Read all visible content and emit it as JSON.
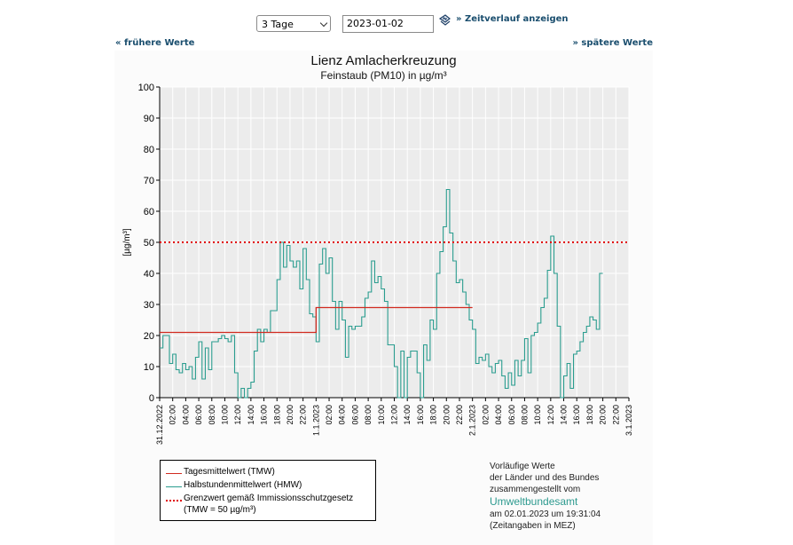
{
  "controls": {
    "range_selected": "3 Tage",
    "date_value": "2023-01-02",
    "show_timeline": "» Zeitverlauf anzeigen",
    "earlier": "« frühere Werte",
    "later": "» spätere Werte"
  },
  "chart_data": {
    "type": "line",
    "title": "Lienz Amlacherkreuzung",
    "subtitle": "Feinstaub (PM10) in µg/m³",
    "ylabel": "[µg/m³]",
    "ylim": [
      0,
      100
    ],
    "yticks": [
      0,
      10,
      20,
      30,
      40,
      50,
      60,
      70,
      80,
      90,
      100
    ],
    "x_range_hours": [
      0,
      72
    ],
    "x_ticks": [
      {
        "h": 0,
        "label": "31.12.2022"
      },
      {
        "h": 2,
        "label": "02:00"
      },
      {
        "h": 4,
        "label": "04:00"
      },
      {
        "h": 6,
        "label": "06:00"
      },
      {
        "h": 8,
        "label": "08:00"
      },
      {
        "h": 10,
        "label": "10:00"
      },
      {
        "h": 12,
        "label": "12:00"
      },
      {
        "h": 14,
        "label": "14:00"
      },
      {
        "h": 16,
        "label": "16:00"
      },
      {
        "h": 18,
        "label": "18:00"
      },
      {
        "h": 20,
        "label": "20:00"
      },
      {
        "h": 22,
        "label": "22:00"
      },
      {
        "h": 24,
        "label": "1.1.2023"
      },
      {
        "h": 26,
        "label": "02:00"
      },
      {
        "h": 28,
        "label": "04:00"
      },
      {
        "h": 30,
        "label": "06:00"
      },
      {
        "h": 32,
        "label": "08:00"
      },
      {
        "h": 34,
        "label": "10:00"
      },
      {
        "h": 36,
        "label": "12:00"
      },
      {
        "h": 38,
        "label": "14:00"
      },
      {
        "h": 40,
        "label": "16:00"
      },
      {
        "h": 42,
        "label": "18:00"
      },
      {
        "h": 44,
        "label": "20:00"
      },
      {
        "h": 46,
        "label": "22:00"
      },
      {
        "h": 48,
        "label": "2.1.2023"
      },
      {
        "h": 50,
        "label": "02:00"
      },
      {
        "h": 52,
        "label": "04:00"
      },
      {
        "h": 54,
        "label": "06:00"
      },
      {
        "h": 56,
        "label": "08:00"
      },
      {
        "h": 58,
        "label": "10:00"
      },
      {
        "h": 60,
        "label": "12:00"
      },
      {
        "h": 62,
        "label": "14:00"
      },
      {
        "h": 64,
        "label": "16:00"
      },
      {
        "h": 66,
        "label": "18:00"
      },
      {
        "h": 68,
        "label": "20:00"
      },
      {
        "h": 70,
        "label": "22:00"
      },
      {
        "h": 72,
        "label": "3.1.2023"
      }
    ],
    "series": [
      {
        "name": "Halbstundenmittelwert (HMW)",
        "color": "#2a9d8f",
        "step_hours": 0.5,
        "values": [
          16,
          20,
          20,
          11,
          14,
          9,
          8,
          11,
          9,
          10,
          6,
          13,
          18,
          6,
          16,
          9,
          18,
          18,
          19,
          20,
          19,
          18,
          20,
          8,
          0,
          3,
          0,
          3,
          5,
          15,
          22,
          18,
          22,
          21,
          28,
          28,
          38,
          50,
          42,
          49,
          44,
          42,
          44,
          35,
          48,
          38,
          27,
          26,
          18,
          43,
          48,
          40,
          45,
          31,
          22,
          31,
          25,
          13,
          23,
          22,
          23,
          23,
          26,
          32,
          34,
          44,
          37,
          39,
          35,
          31,
          17,
          17,
          10,
          0,
          15,
          0,
          13,
          15,
          15,
          8,
          0,
          17,
          12,
          25,
          22,
          40,
          47,
          55,
          67,
          53,
          44,
          37,
          38,
          34,
          30,
          25,
          22,
          11,
          13,
          12,
          14,
          10,
          8,
          11,
          12,
          7,
          3,
          8,
          4,
          12,
          7,
          12,
          19,
          8,
          20,
          21,
          24,
          29,
          32,
          41,
          52,
          40,
          23,
          0,
          7,
          11,
          3,
          14,
          15,
          18,
          21,
          23,
          26,
          25,
          22,
          40
        ]
      },
      {
        "name": "Tagesmittelwert (TMW)",
        "color": "#d12b20",
        "segments": [
          {
            "from_h": 0,
            "to_h": 24,
            "value": 21
          },
          {
            "from_h": 24,
            "to_h": 48,
            "value": 29
          }
        ]
      }
    ],
    "threshold": {
      "value": 50,
      "color": "#e00000"
    },
    "legend": [
      {
        "label": "Tagesmittelwert (TMW)",
        "color": "#d12b20",
        "style": "solid"
      },
      {
        "label": "Halbstundenmittelwert (HMW)",
        "color": "#2a9d8f",
        "style": "solid"
      },
      {
        "label": "Grenzwert gemäß Immissionsschutzgesetz",
        "label2": "(TMW = 50 µg/m³)",
        "color": "#e00000",
        "style": "dotted"
      }
    ],
    "grid": true
  },
  "source": {
    "line1": "Vorläufige Werte",
    "line2": "der Länder und des Bundes",
    "line3": "zusammengestellt vom",
    "agency": "Umweltbundesamt",
    "timestamp": "am 02.01.2023 um 19:31:04",
    "timezone": "(Zeitangaben in MEZ)"
  }
}
